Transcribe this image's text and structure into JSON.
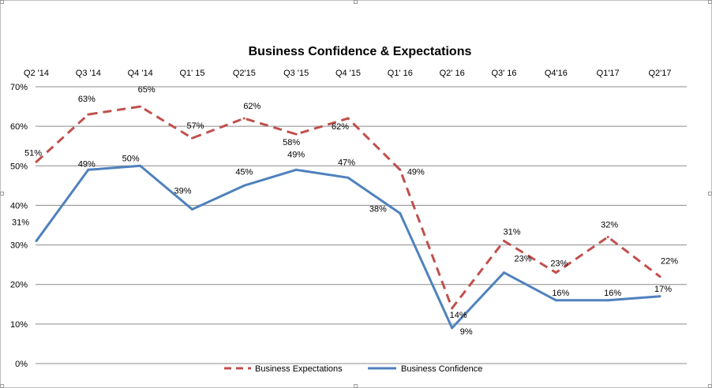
{
  "chart_data": {
    "type": "line",
    "title": "Business Confidence & Expectations",
    "categories": [
      "Q2 '14",
      "Q3 '14",
      "Q4 '14",
      "Q1' 15",
      "Q2'15",
      "Q3 '15",
      "Q4 '15",
      "Q1' 16",
      "Q2' 16",
      "Q3' 16",
      "Q4'16",
      "Q1'17",
      "Q2'17"
    ],
    "y_ticks": [
      "0%",
      "10%",
      "20%",
      "30%",
      "40%",
      "50%",
      "60%",
      "70%"
    ],
    "ylim": [
      0,
      70
    ],
    "grid": true,
    "legend_position": "bottom",
    "series": [
      {
        "name": "Business Expectations",
        "color": "#c0504d",
        "dash": true,
        "values": [
          51,
          63,
          65,
          57,
          62,
          58,
          62,
          49,
          14,
          31,
          23,
          32,
          22
        ],
        "labels": [
          "51%",
          "63%",
          "65%",
          "57%",
          "62%",
          "58%",
          "62%",
          "49%",
          "14%",
          "31%",
          "23%",
          "32%",
          "22%"
        ]
      },
      {
        "name": "Business Confidence",
        "color": "#4f81bd",
        "dash": false,
        "values": [
          31,
          49,
          50,
          39,
          45,
          49,
          47,
          38,
          9,
          23,
          16,
          16,
          17
        ],
        "labels": [
          "31%",
          "49%",
          "50%",
          "39%",
          "45%",
          "49%",
          "47%",
          "38%",
          "9%",
          "23%",
          "16%",
          "16%",
          "17%"
        ]
      }
    ]
  }
}
